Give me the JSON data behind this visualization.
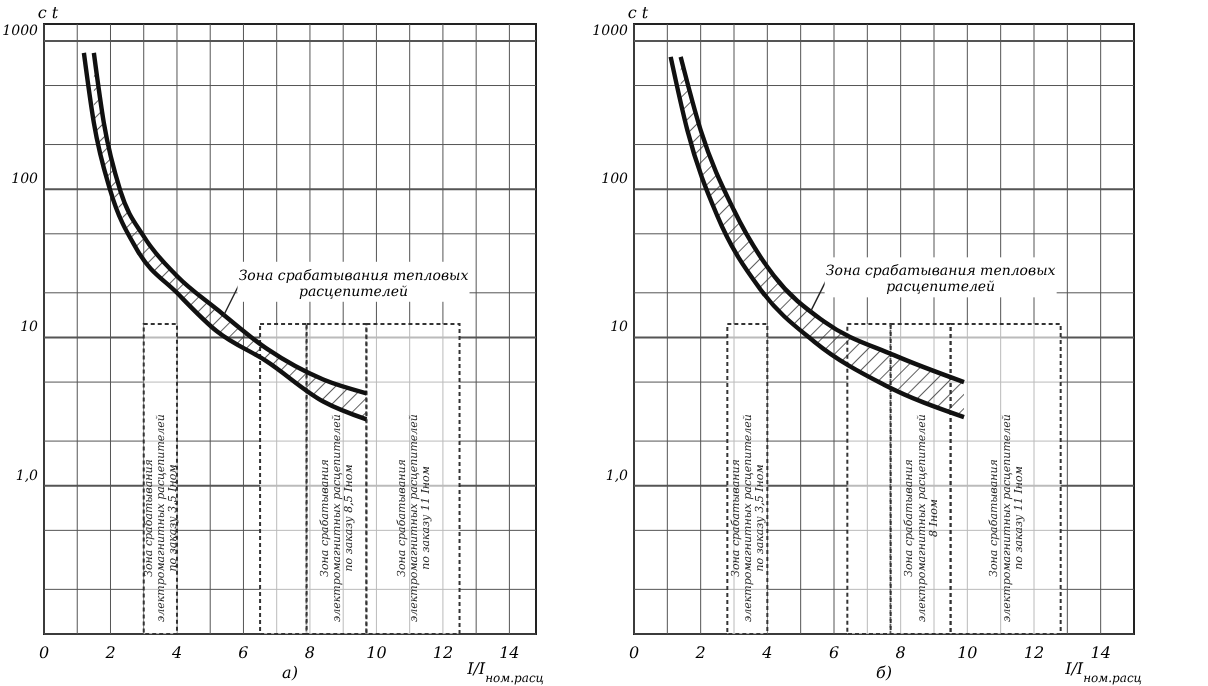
{
  "chart_data": [
    {
      "type": "line",
      "title": "а)",
      "xlabel": "I/I$_{ном.расц}$",
      "ylabel": "с t",
      "log": "y",
      "grid": true,
      "marker": "none",
      "line_style": "solid",
      "xlim": [
        0,
        14.8
      ],
      "ylim": [
        0.1,
        1300
      ],
      "xticks": [
        0,
        {
          "value": 1,
          "label": null
        },
        2,
        {
          "value": 3,
          "label": null
        },
        4,
        {
          "value": 5,
          "label": null
        },
        6,
        {
          "value": 7,
          "label": null
        },
        8,
        {
          "value": 9,
          "label": null
        },
        10,
        {
          "value": 11,
          "label": null
        },
        12,
        {
          "value": 13,
          "label": null
        },
        14
      ],
      "yticks": [
        {
          "value": 0.1,
          "label": null
        },
        {
          "value": 0.2,
          "label": null
        },
        {
          "value": 0.5,
          "label": null
        },
        {
          "value": 1,
          "label": "1,0"
        },
        {
          "value": 2,
          "label": null
        },
        {
          "value": 5,
          "label": null
        },
        10,
        {
          "value": 20,
          "label": null
        },
        {
          "value": 50,
          "label": null
        },
        100,
        {
          "value": 200,
          "label": null
        },
        {
          "value": 500,
          "label": null
        },
        1000
      ],
      "series": [
        {
          "color": "#111111",
          "x": [
            1.5,
            1.8,
            2.3,
            3.0,
            4.0,
            5.2,
            6.7,
            8.4,
            9.7
          ],
          "values": [
            830,
            280,
            97,
            48,
            26,
            15.5,
            8.4,
            5.2,
            4.2
          ],
          "lower": [
            280,
            150,
            70,
            35,
            20,
            11,
            6.9,
            3.7,
            2.8
          ],
          "upper": [
            830,
            280,
            97,
            48,
            26,
            15.5,
            8.4,
            5.2,
            4.2
          ]
        },
        {
          "color": "#111111",
          "x": [
            1.2,
            1.5,
            2.0,
            2.8,
            4.0,
            5.2,
            6.7,
            8.4,
            9.7
          ],
          "values": [
            830,
            280,
            97,
            39,
            20,
            11,
            6.9,
            3.7,
            2.8
          ]
        }
      ],
      "bands": [
        {
          "axis": "x",
          "from": 3.0,
          "to": 4.0,
          "label": "Зона срабатывания электромагнитных расцепителей по заказу 3,5 Iном"
        },
        {
          "axis": "x",
          "from": 6.5,
          "to": 7.9,
          "label": null
        },
        {
          "axis": "x",
          "from": 7.9,
          "to": 9.7,
          "label": "Зона срабатывания электромагнитных расцепителей по заказу 8,5 Iном"
        },
        {
          "axis": "x",
          "from": 9.7,
          "to": 12.5,
          "label": "Зона срабатывания электромагнитных расцепителей по заказу 11 Iном"
        }
      ],
      "annotations": [
        {
          "text": "Зона срабатывания тепловых расцепителей",
          "x": 5.4,
          "y": 14
        }
      ]
    },
    {
      "type": "line",
      "title": "б)",
      "xlabel": "I/I$_{ном.расц}$",
      "ylabel": "с t",
      "log": "y",
      "grid": true,
      "marker": "none",
      "line_style": "solid",
      "xlim": [
        0,
        15
      ],
      "ylim": [
        0.1,
        1300
      ],
      "xticks": [
        0,
        {
          "value": 1,
          "label": null
        },
        2,
        {
          "value": 3,
          "label": null
        },
        4,
        {
          "value": 5,
          "label": null
        },
        6,
        {
          "value": 7,
          "label": null
        },
        8,
        {
          "value": 9,
          "label": null
        },
        10,
        {
          "value": 11,
          "label": null
        },
        12,
        {
          "value": 13,
          "label": null
        },
        14
      ],
      "yticks": [
        {
          "value": 0.1,
          "label": null
        },
        {
          "value": 0.2,
          "label": null
        },
        {
          "value": 0.5,
          "label": null
        },
        {
          "value": 1,
          "label": "1,0"
        },
        {
          "value": 2,
          "label": null
        },
        {
          "value": 5,
          "label": null
        },
        10,
        {
          "value": 20,
          "label": null
        },
        {
          "value": 50,
          "label": null
        },
        100,
        {
          "value": 200,
          "label": null
        },
        {
          "value": 500,
          "label": null
        },
        1000
      ],
      "series": [
        {
          "color": "#111111",
          "x": [
            1.4,
            2.0,
            3.0,
            4.2,
            5.7,
            7.8,
            9.9
          ],
          "values": [
            780,
            250,
            72,
            26,
            12.8,
            7.6,
            5.0
          ],
          "lower": [
            400,
            140,
            40,
            17,
            8.5,
            4.6,
            2.9
          ],
          "upper": [
            780,
            250,
            72,
            26,
            12.8,
            7.6,
            5.0
          ]
        },
        {
          "color": "#111111",
          "x": [
            1.1,
            1.6,
            2.5,
            3.8,
            5.4,
            7.5,
            9.9
          ],
          "values": [
            780,
            250,
            66,
            21,
            9.4,
            4.8,
            2.9
          ]
        }
      ],
      "bands": [
        {
          "axis": "x",
          "from": 2.8,
          "to": 4.0,
          "label": "Зона срабатывания электромагнитных расцепителей по заказу 3,5 Iном"
        },
        {
          "axis": "x",
          "from": 6.4,
          "to": 7.7,
          "label": null
        },
        {
          "axis": "x",
          "from": 7.7,
          "to": 9.5,
          "label": "Зона срабатывания электромагнитных расцепителей 8 Iном"
        },
        {
          "axis": "x",
          "from": 9.5,
          "to": 12.8,
          "label": "Зона срабатывания электромагнитных расцепителей по заказу 11 Iном"
        }
      ],
      "annotations": [
        {
          "text": "Зона срабатывания тепловых расцепителей",
          "x": 5.3,
          "y": 15
        }
      ]
    }
  ]
}
